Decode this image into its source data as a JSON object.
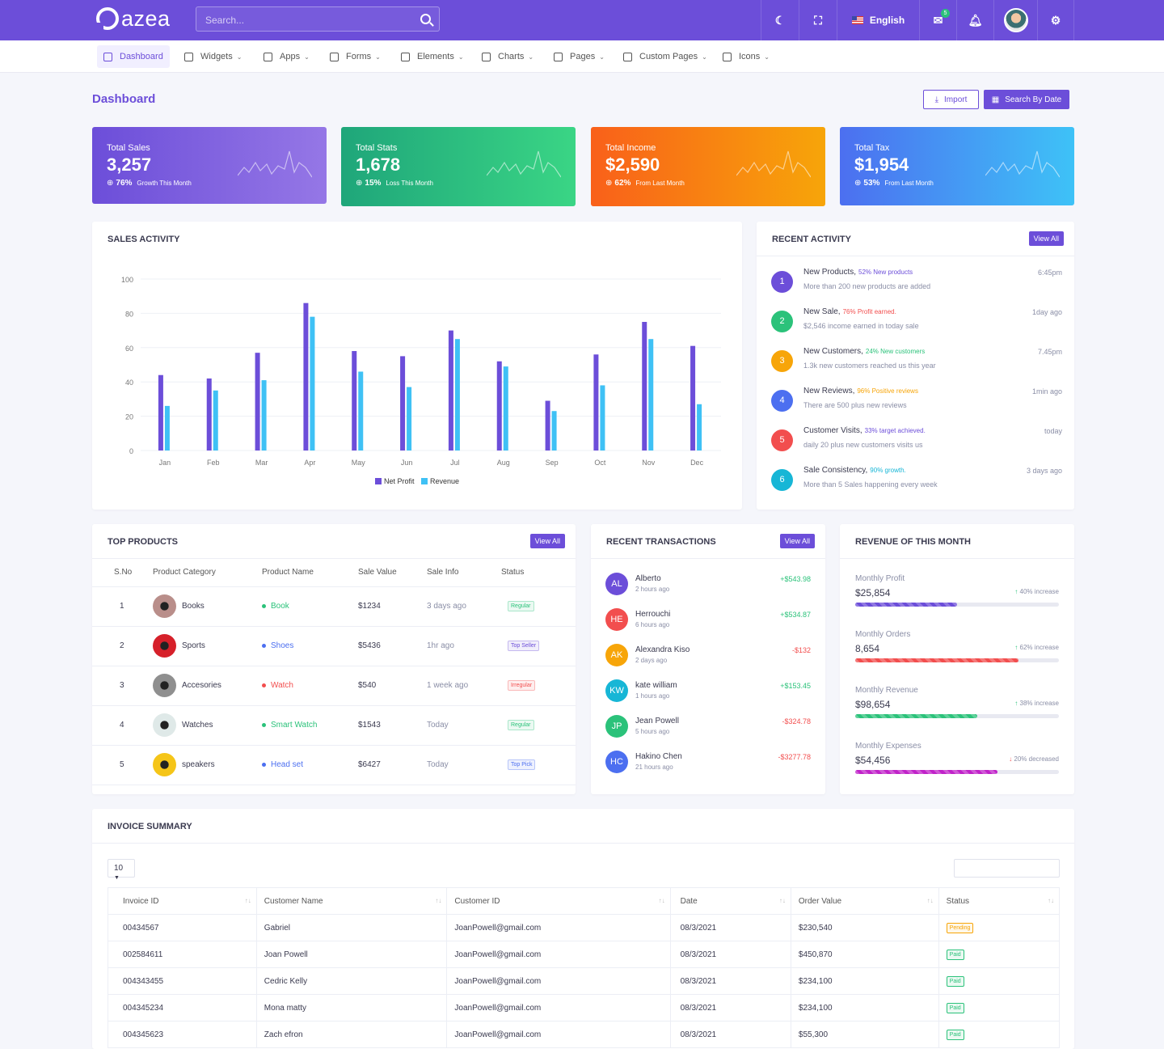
{
  "app": {
    "brand": "azea",
    "search_placeholder": "Search..."
  },
  "topbar": {
    "language": "English",
    "mail_badge": "5"
  },
  "nav": [
    {
      "label": "Dashboard",
      "caret": false
    },
    {
      "label": "Widgets",
      "caret": true
    },
    {
      "label": "Apps",
      "caret": true
    },
    {
      "label": "Forms",
      "caret": true
    },
    {
      "label": "Elements",
      "caret": true
    },
    {
      "label": "Charts",
      "caret": true
    },
    {
      "label": "Pages",
      "caret": true
    },
    {
      "label": "Custom Pages",
      "caret": true
    },
    {
      "label": "Icons",
      "caret": true
    }
  ],
  "page": {
    "title": "Dashboard",
    "import_label": "Import",
    "search_date_label": "Search By Date"
  },
  "stats": [
    {
      "label": "Total Sales",
      "value": "3,257",
      "pct": "76%",
      "note": "Growth This Month",
      "from": "#6c4ed9",
      "to": "#9577e6"
    },
    {
      "label": "Total Stats",
      "value": "1,678",
      "pct": "15%",
      "note": "Loss This Month",
      "from": "#1fa67a",
      "to": "#3ad585"
    },
    {
      "label": "Total Income",
      "value": "$2,590",
      "pct": "62%",
      "note": "From Last Month",
      "from": "#f9601a",
      "to": "#f7a509"
    },
    {
      "label": "Total Tax",
      "value": "$1,954",
      "pct": "53%",
      "note": "From Last Month",
      "from": "#4c6ff0",
      "to": "#3ec2f7"
    }
  ],
  "sales_activity": {
    "title": "SALES ACTIVITY"
  },
  "chart_data": {
    "type": "bar",
    "categories": [
      "Jan",
      "Feb",
      "Mar",
      "Apr",
      "May",
      "Jun",
      "Jul",
      "Aug",
      "Sep",
      "Oct",
      "Nov",
      "Dec"
    ],
    "series": [
      {
        "name": "Net Profit",
        "color": "#6c4ed9",
        "values": [
          44,
          42,
          57,
          86,
          58,
          55,
          70,
          52,
          29,
          56,
          75,
          61
        ]
      },
      {
        "name": "Revenue",
        "color": "#3fc1f5",
        "values": [
          26,
          35,
          41,
          78,
          46,
          37,
          65,
          49,
          23,
          38,
          65,
          27
        ]
      }
    ],
    "ylim": [
      0,
      100
    ],
    "yticks": [
      0,
      20,
      40,
      60,
      80,
      100
    ],
    "legend": "bottom"
  },
  "recent_activity": {
    "title": "RECENT ACTIVITY",
    "view_all": "View All",
    "items": [
      {
        "num": "1",
        "title": "New Products,",
        "highlight": "52% New products",
        "hl_color": "#6c4ed9",
        "sub": "More than 200 new products are added",
        "time": "6:45pm",
        "color": "#6c4ed9"
      },
      {
        "num": "2",
        "title": "New Sale,",
        "highlight": "76% Profit earned.",
        "hl_color": "#f24e4e",
        "sub": "$2,546 income earned in today sale",
        "time": "1day ago",
        "color": "#2bc27a"
      },
      {
        "num": "3",
        "title": "New Customers,",
        "highlight": "24% New customers",
        "hl_color": "#2bc27a",
        "sub": "1.3k new customers reached us this year",
        "time": "7.45pm",
        "color": "#f7a509"
      },
      {
        "num": "4",
        "title": "New Reviews,",
        "highlight": "96% Positive reviews",
        "hl_color": "#f7a509",
        "sub": "There are 500 plus new reviews",
        "time": "1min ago",
        "color": "#4c6ff0"
      },
      {
        "num": "5",
        "title": "Customer Visits,",
        "highlight": "33% target achieved.",
        "hl_color": "#6c4ed9",
        "sub": "daily 20 plus new customers visits us",
        "time": "today",
        "color": "#f24e4e"
      },
      {
        "num": "6",
        "title": "Sale Consistency,",
        "highlight": "90% growth.",
        "hl_color": "#17b6d6",
        "sub": "More than 5 Sales happening every week",
        "time": "3 days ago",
        "color": "#17b6d6"
      }
    ]
  },
  "top_products": {
    "title": "TOP PRODUCTS",
    "view_all": "View All",
    "columns": [
      "S.No",
      "Product Category",
      "Product Name",
      "Sale Value",
      "Sale Info",
      "Status"
    ],
    "rows": [
      {
        "sno": "1",
        "category": "Books",
        "name": "Book",
        "dot": "#2bc27a",
        "name_color": "#2bc27a",
        "value": "$1234",
        "info": "3 days ago",
        "status": "Regular",
        "status_color": "#2bc27a",
        "img": "#b98e8a"
      },
      {
        "sno": "2",
        "category": "Sports",
        "name": "Shoes",
        "dot": "#4c6ff0",
        "name_color": "#4c6ff0",
        "value": "$5436",
        "info": "1hr ago",
        "status": "Top Seller",
        "status_color": "#6c4ed9",
        "img": "#d6202a"
      },
      {
        "sno": "3",
        "category": "Accesories",
        "name": "Watch",
        "dot": "#f24e4e",
        "name_color": "#f24e4e",
        "value": "$540",
        "info": "1 week ago",
        "status": "Irregular",
        "status_color": "#f24e4e",
        "img": "#8f8f8f"
      },
      {
        "sno": "4",
        "category": "Watches",
        "name": "Smart Watch",
        "dot": "#2bc27a",
        "name_color": "#2bc27a",
        "value": "$1543",
        "info": "Today",
        "status": "Regular",
        "status_color": "#2bc27a",
        "img": "#dfe9e8"
      },
      {
        "sno": "5",
        "category": "speakers",
        "name": "Head set",
        "dot": "#4c6ff0",
        "name_color": "#4c6ff0",
        "value": "$6427",
        "info": "Today",
        "status": "Top Pick",
        "status_color": "#4c6ff0",
        "img": "#f5c518"
      }
    ]
  },
  "recent_transactions": {
    "title": "RECENT TRANSACTIONS",
    "view_all": "View All",
    "items": [
      {
        "initials": "AL",
        "name": "Alberto",
        "time": "2 hours ago",
        "amount": "+$543.98",
        "amount_color": "#2bc27a",
        "color": "#6c4ed9"
      },
      {
        "initials": "HE",
        "name": "Herrouchi",
        "time": "6 hours ago",
        "amount": "+$534.87",
        "amount_color": "#2bc27a",
        "color": "#f24e4e"
      },
      {
        "initials": "AK",
        "name": "Alexandra Kiso",
        "time": "2 days ago",
        "amount": "-$132",
        "amount_color": "#f24e4e",
        "color": "#f7a509"
      },
      {
        "initials": "KW",
        "name": "kate william",
        "time": "1 hours ago",
        "amount": "+$153.45",
        "amount_color": "#2bc27a",
        "color": "#17b6d6"
      },
      {
        "initials": "JP",
        "name": "Jean Powell",
        "time": "5 hours ago",
        "amount": "-$324.78",
        "amount_color": "#f24e4e",
        "color": "#2bc27a"
      },
      {
        "initials": "HC",
        "name": "Hakino Chen",
        "time": "21 hours ago",
        "amount": "-$3277.78",
        "amount_color": "#f24e4e",
        "color": "#4c6ff0"
      }
    ]
  },
  "revenue": {
    "title": "REVENUE OF THIS MONTH",
    "items": [
      {
        "label": "Monthly Profit",
        "value": "$25,854",
        "change": "40% increase",
        "dir": "up",
        "fill_pct": 50,
        "color": "#6c4ed9"
      },
      {
        "label": "Monthly Orders",
        "value": "8,654",
        "change": "62% increase",
        "dir": "up",
        "fill_pct": 80,
        "color": "#f24e4e"
      },
      {
        "label": "Monthly Revenue",
        "value": "$98,654",
        "change": "38% increase",
        "dir": "up",
        "fill_pct": 60,
        "color": "#2bc27a"
      },
      {
        "label": "Monthly Expenses",
        "value": "$54,456",
        "change": "20% decreased",
        "dir": "down",
        "fill_pct": 70,
        "color": "#c022c9"
      }
    ]
  },
  "invoice": {
    "title": "INVOICE SUMMARY",
    "page_length": "10",
    "columns": [
      "Invoice ID",
      "Customer Name",
      "Customer ID",
      "Date",
      "Order Value",
      "Status"
    ],
    "rows": [
      {
        "id": "00434567",
        "name": "Gabriel",
        "cid": "JoanPowell@gmail.com",
        "date": "08/3/2021",
        "value": "$230,540",
        "status": "Pending",
        "status_color": "#f7a509"
      },
      {
        "id": "002584611",
        "name": "Joan Powell",
        "cid": "JoanPowell@gmail.com",
        "date": "08/3/2021",
        "value": "$450,870",
        "status": "Paid",
        "status_color": "#2bc27a"
      },
      {
        "id": "004343455",
        "name": "Cedric Kelly",
        "cid": "JoanPowell@gmail.com",
        "date": "08/3/2021",
        "value": "$234,100",
        "status": "Paid",
        "status_color": "#2bc27a"
      },
      {
        "id": "004345234",
        "name": "Mona matty",
        "cid": "JoanPowell@gmail.com",
        "date": "08/3/2021",
        "value": "$234,100",
        "status": "Paid",
        "status_color": "#2bc27a"
      },
      {
        "id": "004345623",
        "name": "Zach efron",
        "cid": "JoanPowell@gmail.com",
        "date": "08/3/2021",
        "value": "$55,300",
        "status": "Paid",
        "status_color": "#2bc27a"
      }
    ]
  }
}
